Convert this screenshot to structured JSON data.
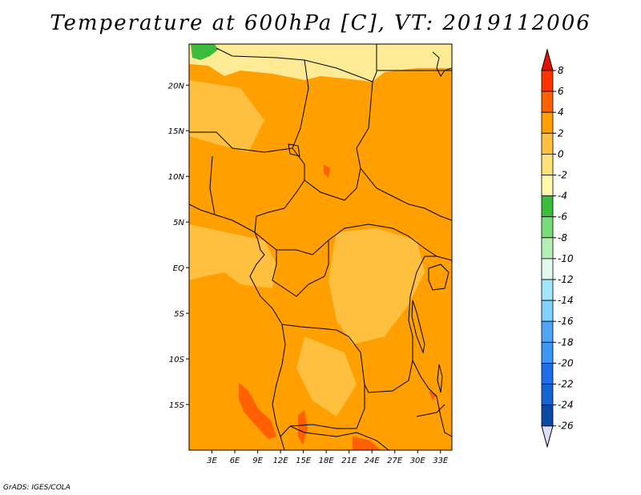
{
  "title": "Temperature at 600hPa [C], VT: 2019112006",
  "footer": "GrADS: IGES/COLA",
  "map": {
    "lon_range": [
      0,
      34.5
    ],
    "lat_range": [
      -20,
      24.5
    ],
    "lat_ticks": [
      {
        "lat": 20,
        "label": "20N"
      },
      {
        "lat": 15,
        "label": "15N"
      },
      {
        "lat": 10,
        "label": "10N"
      },
      {
        "lat": 5,
        "label": "5N"
      },
      {
        "lat": 0,
        "label": "EQ"
      },
      {
        "lat": -5,
        "label": "5S"
      },
      {
        "lat": -10,
        "label": "10S"
      },
      {
        "lat": -15,
        "label": "15S"
      }
    ],
    "lon_ticks": [
      {
        "lon": 3,
        "label": "3E"
      },
      {
        "lon": 6,
        "label": "6E"
      },
      {
        "lon": 9,
        "label": "9E"
      },
      {
        "lon": 12,
        "label": "12E"
      },
      {
        "lon": 15,
        "label": "15E"
      },
      {
        "lon": 18,
        "label": "18E"
      },
      {
        "lon": 21,
        "label": "21E"
      },
      {
        "lon": 24,
        "label": "24E"
      },
      {
        "lon": 27,
        "label": "27E"
      },
      {
        "lon": 30,
        "label": "30E"
      },
      {
        "lon": 33,
        "label": "33E"
      }
    ],
    "colors": {
      "dominant": "#ffa000",
      "warm_lower": "#ffc040",
      "cool": "#ffeb96",
      "green": "#3cbc3d",
      "hot": "#ff6000"
    }
  },
  "colorbar": {
    "top_arrow_color": "#e11400",
    "bottom_arrow_color": "#dcdcff",
    "bins": [
      {
        "color": "#ff3200"
      },
      {
        "color": "#ff6000"
      },
      {
        "color": "#ffa000"
      },
      {
        "color": "#ffc040"
      },
      {
        "color": "#ffe178"
      },
      {
        "color": "#fffaaa"
      },
      {
        "color": "#3cbc3d"
      },
      {
        "color": "#78dc78"
      },
      {
        "color": "#b4f0b4"
      },
      {
        "color": "#e1faf0"
      },
      {
        "color": "#a0e6ff"
      },
      {
        "color": "#82d2ff"
      },
      {
        "color": "#50a5f5"
      },
      {
        "color": "#3c96f5"
      },
      {
        "color": "#1e6eeb"
      },
      {
        "color": "#1464d2"
      },
      {
        "color": "#0a4aa5"
      }
    ],
    "labels": [
      "8",
      "6",
      "4",
      "2",
      "0",
      "-2",
      "-4",
      "-6",
      "-8",
      "-10",
      "-12",
      "-14",
      "-16",
      "-18",
      "-20",
      "-22",
      "-24",
      "-26"
    ]
  }
}
